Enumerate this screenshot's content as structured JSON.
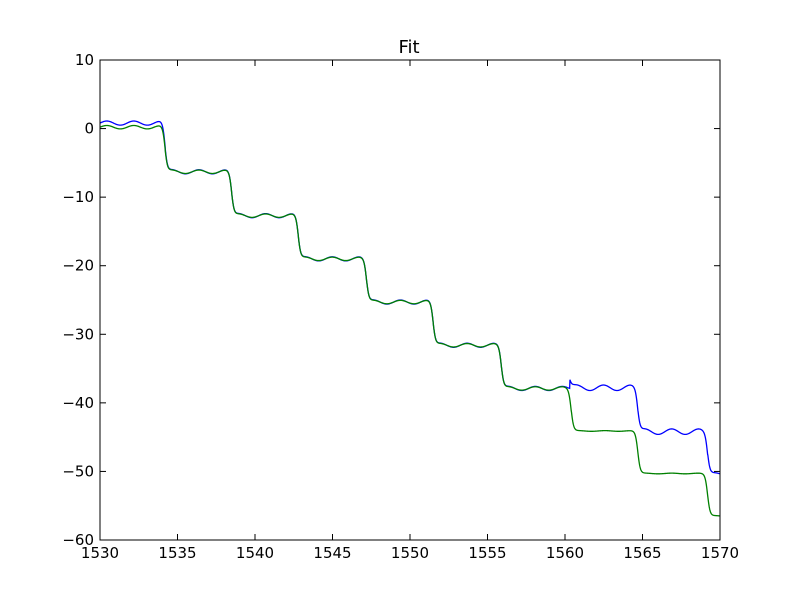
{
  "chart_data": {
    "type": "line",
    "title": "Fit",
    "xlabel": "",
    "ylabel": "",
    "xlim": [
      1530,
      1570
    ],
    "ylim": [
      -60,
      10
    ],
    "xticks": [
      1530,
      1535,
      1540,
      1545,
      1550,
      1555,
      1560,
      1565,
      1570
    ],
    "yticks": [
      10,
      0,
      -10,
      -20,
      -30,
      -40,
      -50,
      -60
    ],
    "xtick_labels": [
      "1530",
      "1535",
      "1540",
      "1545",
      "1550",
      "1555",
      "1560",
      "1565",
      "1570"
    ],
    "ytick_labels": [
      "10",
      "0",
      "−10",
      "−20",
      "−30",
      "−40",
      "−50",
      "−60"
    ],
    "grid": false,
    "series": [
      {
        "color": "#0000ff",
        "steps": [
          {
            "x": 1530.0,
            "y": 0.8,
            "ripple": 0.3
          },
          {
            "x": 1534.2,
            "y": -6.3,
            "ripple": 0.3
          },
          {
            "x": 1538.5,
            "y": -12.7,
            "ripple": 0.3
          },
          {
            "x": 1542.8,
            "y": -19.0,
            "ripple": 0.3
          },
          {
            "x": 1547.2,
            "y": -25.3,
            "ripple": 0.3
          },
          {
            "x": 1551.5,
            "y": -31.6,
            "ripple": 0.3
          },
          {
            "x": 1555.9,
            "y": -37.9,
            "ripple": 0.3
          },
          {
            "x": 1560.3,
            "y": -37.8,
            "ripple": 0.4,
            "spike": -36.4
          },
          {
            "x": 1564.7,
            "y": -44.2,
            "ripple": 0.4
          },
          {
            "x": 1569.2,
            "y": -50.4,
            "ripple": 0.2
          }
        ],
        "x_end": 1570
      },
      {
        "color": "#008000",
        "steps": [
          {
            "x": 1530.0,
            "y": 0.2,
            "ripple": 0.25
          },
          {
            "x": 1534.2,
            "y": -6.3,
            "ripple": 0.25
          },
          {
            "x": 1538.5,
            "y": -12.7,
            "ripple": 0.25
          },
          {
            "x": 1542.8,
            "y": -19.0,
            "ripple": 0.25
          },
          {
            "x": 1547.2,
            "y": -25.3,
            "ripple": 0.25
          },
          {
            "x": 1551.5,
            "y": -31.6,
            "ripple": 0.25
          },
          {
            "x": 1555.9,
            "y": -37.9,
            "ripple": 0.25
          },
          {
            "x": 1560.4,
            "y": -44.1,
            "ripple": 0.05
          },
          {
            "x": 1564.7,
            "y": -50.3,
            "ripple": 0.05
          },
          {
            "x": 1569.2,
            "y": -56.5,
            "ripple": 0.05
          }
        ],
        "x_end": 1570
      }
    ]
  }
}
